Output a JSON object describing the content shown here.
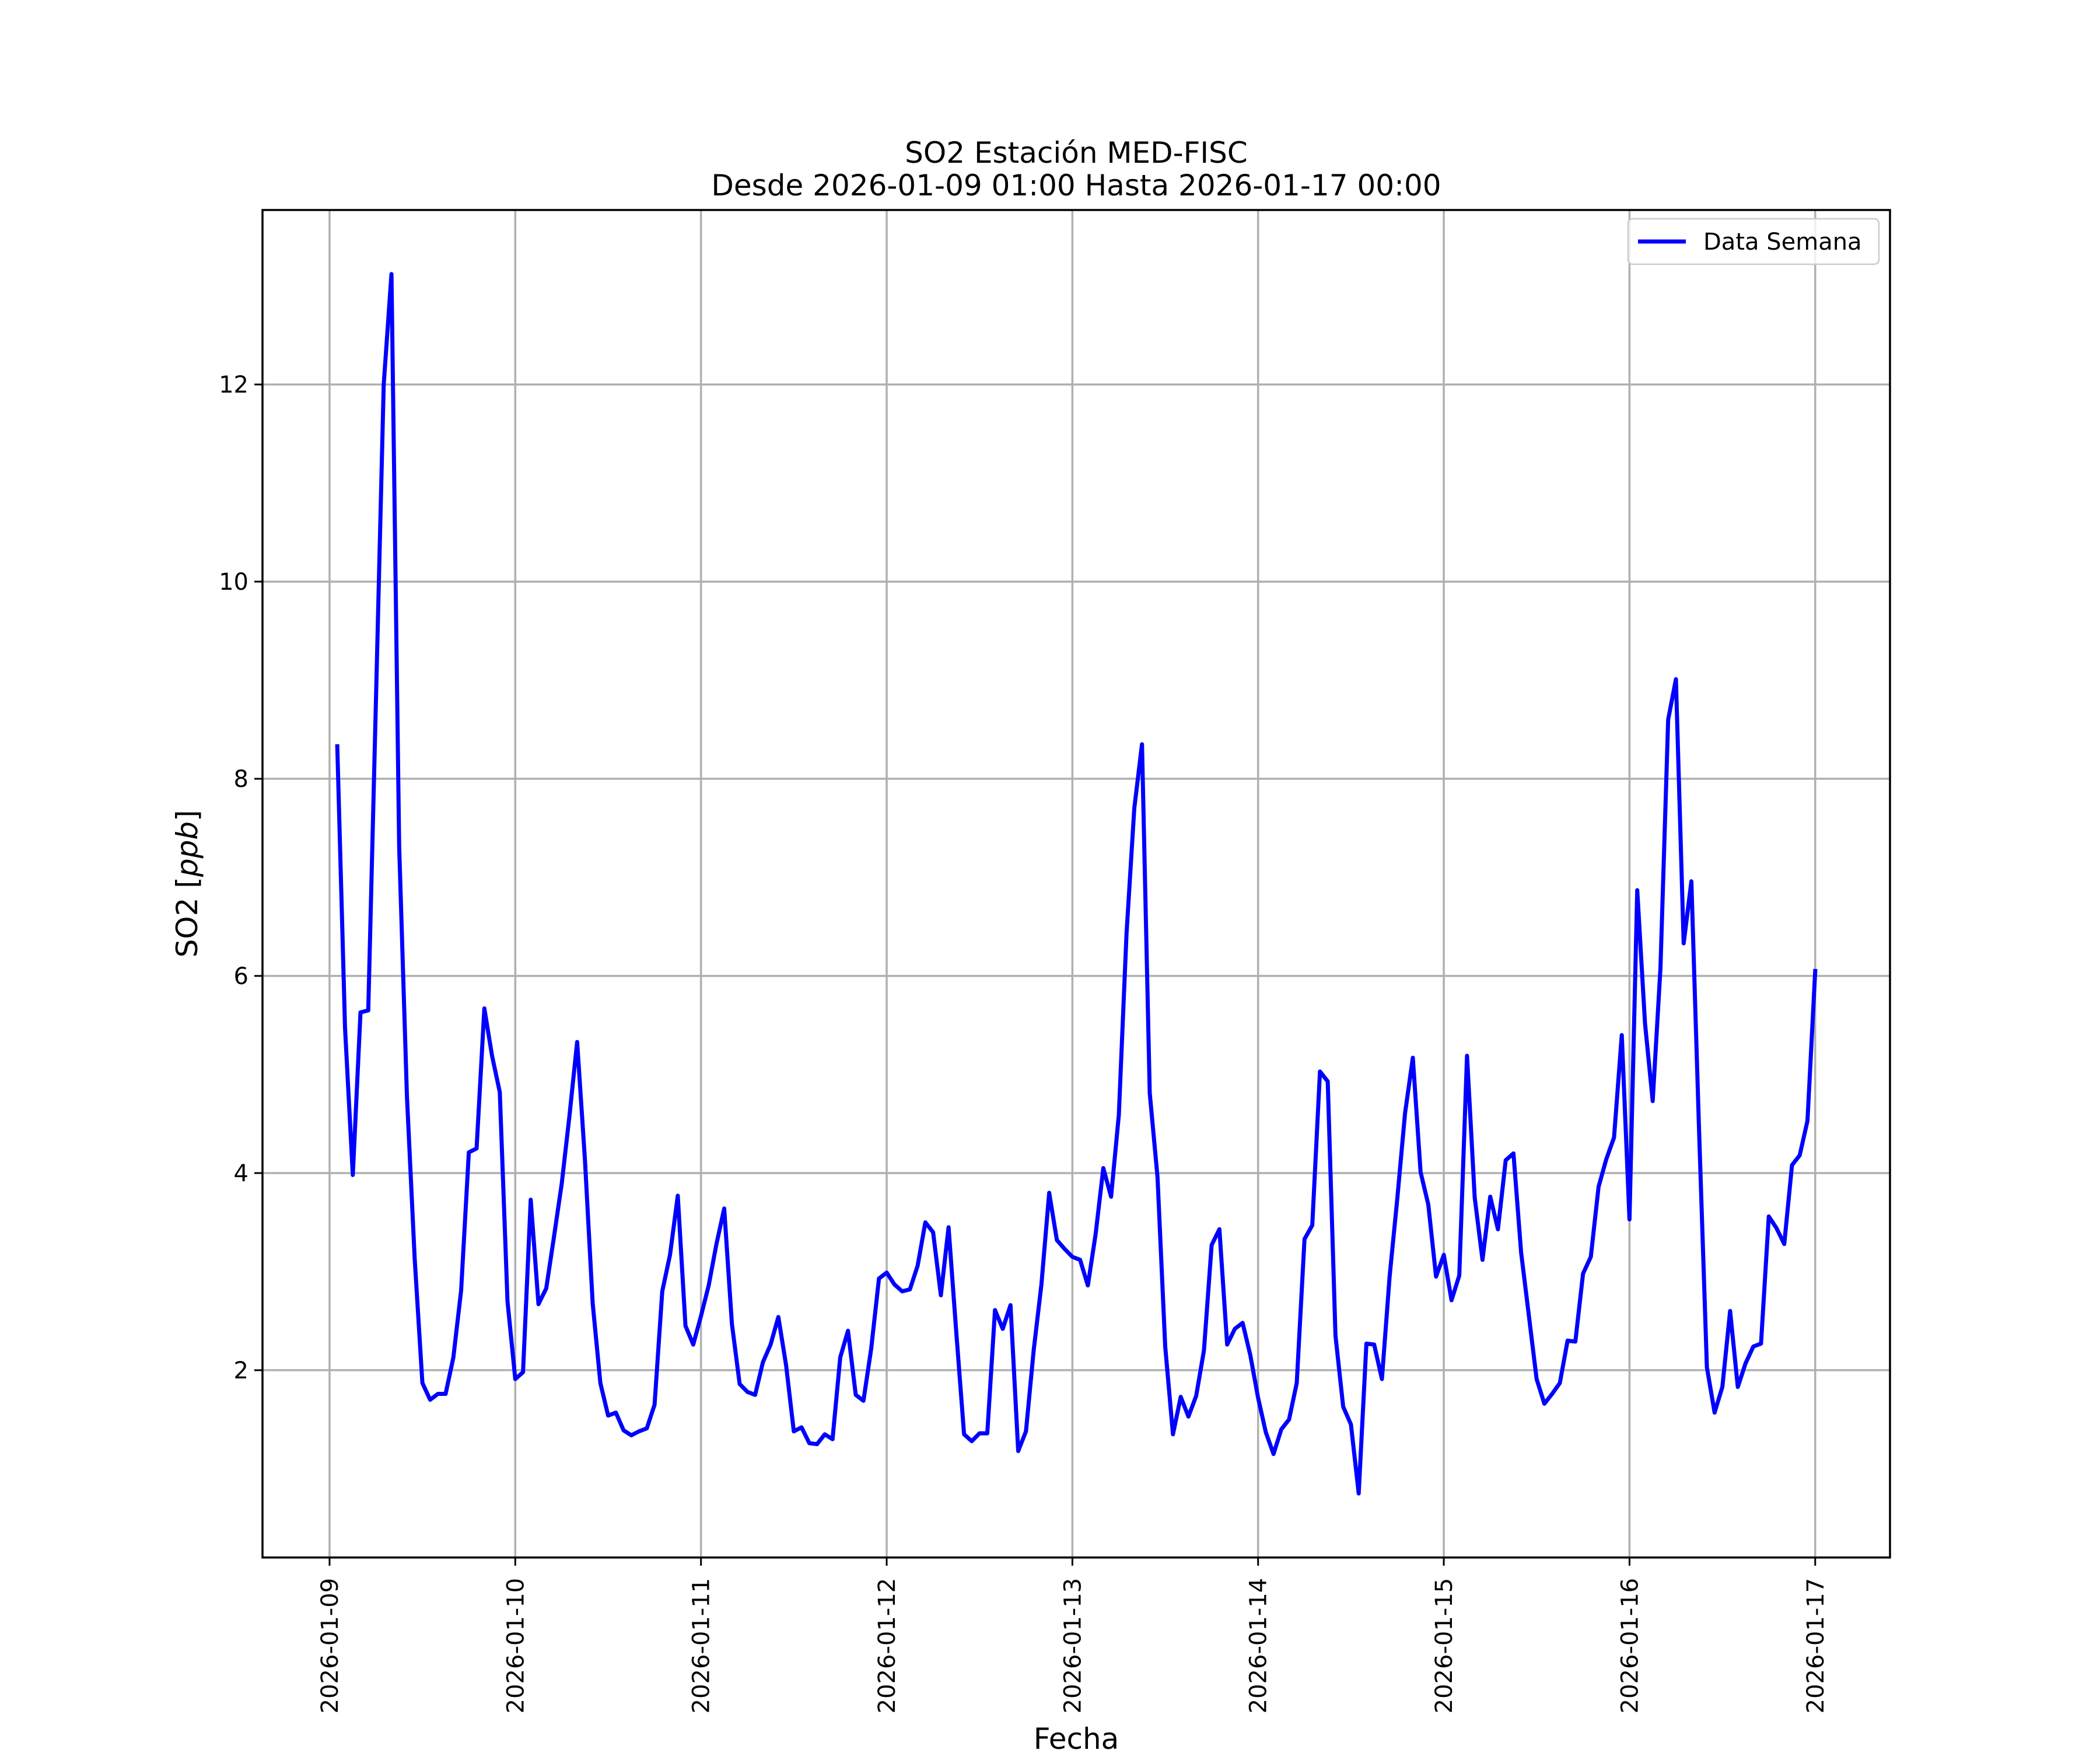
{
  "chart_data": {
    "type": "line",
    "title": "SO2 Estación MED-FISC",
    "subtitle": "Desde 2026-01-09 01:00 Hasta 2026-01-17 00:00",
    "xlabel": "Fecha",
    "ylabel_prefix": "SO2 [",
    "ylabel_unit": "ppb",
    "ylabel_suffix": "]",
    "x_ticks": [
      "2026-01-09",
      "2026-01-10",
      "2026-01-11",
      "2026-01-12",
      "2026-01-13",
      "2026-01-14",
      "2026-01-15",
      "2026-01-16",
      "2026-01-17"
    ],
    "y_ticks": [
      2,
      4,
      6,
      8,
      10,
      12
    ],
    "xlim": [
      "2026-01-08 15:20",
      "2026-01-17 09:40"
    ],
    "ylim": [
      0.1,
      13.77
    ],
    "grid": true,
    "legend_position": "top-right",
    "series": [
      {
        "name": "Data Semana",
        "color": "#0000ff",
        "start": "2026-01-09 01:00",
        "interval_hours": 1,
        "values": [
          8.33,
          5.47,
          3.98,
          5.63,
          5.65,
          8.8,
          12.0,
          13.12,
          7.31,
          4.78,
          3.13,
          1.87,
          1.7,
          1.76,
          1.76,
          2.13,
          2.81,
          4.21,
          4.25,
          5.67,
          5.19,
          4.82,
          2.7,
          1.91,
          1.98,
          3.73,
          2.67,
          2.83,
          3.35,
          3.89,
          4.58,
          5.33,
          4.14,
          2.68,
          1.87,
          1.54,
          1.57,
          1.39,
          1.34,
          1.38,
          1.41,
          1.65,
          2.8,
          3.17,
          3.77,
          2.45,
          2.26,
          2.55,
          2.86,
          3.28,
          3.64,
          2.47,
          1.86,
          1.78,
          1.75,
          2.08,
          2.26,
          2.54,
          2.05,
          1.38,
          1.42,
          1.26,
          1.25,
          1.35,
          1.3,
          2.13,
          2.4,
          1.75,
          1.69,
          2.22,
          2.93,
          2.99,
          2.87,
          2.8,
          2.82,
          3.06,
          3.5,
          3.4,
          2.76,
          3.45,
          2.38,
          1.35,
          1.28,
          1.36,
          1.36,
          2.61,
          2.42,
          2.66,
          1.18,
          1.38,
          2.2,
          2.87,
          3.8,
          3.32,
          3.23,
          3.15,
          3.12,
          2.86,
          3.38,
          4.05,
          3.76,
          4.59,
          6.43,
          7.7,
          8.35,
          4.81,
          3.96,
          2.24,
          1.35,
          1.73,
          1.53,
          1.74,
          2.2,
          3.27,
          3.43,
          2.26,
          2.42,
          2.48,
          2.15,
          1.72,
          1.37,
          1.15,
          1.4,
          1.5,
          1.87,
          3.33,
          3.47,
          5.03,
          4.93,
          2.35,
          1.63,
          1.45,
          0.75,
          2.27,
          2.26,
          1.91,
          2.95,
          3.75,
          4.61,
          5.17,
          4.01,
          3.68,
          2.95,
          3.17,
          2.71,
          2.96,
          5.19,
          3.75,
          3.12,
          3.76,
          3.43,
          4.13,
          4.2,
          3.19,
          2.55,
          1.91,
          1.66,
          1.76,
          1.87,
          2.3,
          2.29,
          2.98,
          3.15,
          3.86,
          4.14,
          4.36,
          5.4,
          3.53,
          6.87,
          5.52,
          4.73,
          6.08,
          8.6,
          9.01,
          6.33,
          6.96,
          4.41,
          2.03,
          1.57,
          1.83,
          2.6,
          1.83,
          2.07,
          2.24,
          2.27,
          3.56,
          3.44,
          3.28,
          4.08,
          4.18,
          4.53,
          6.05
        ]
      }
    ]
  }
}
